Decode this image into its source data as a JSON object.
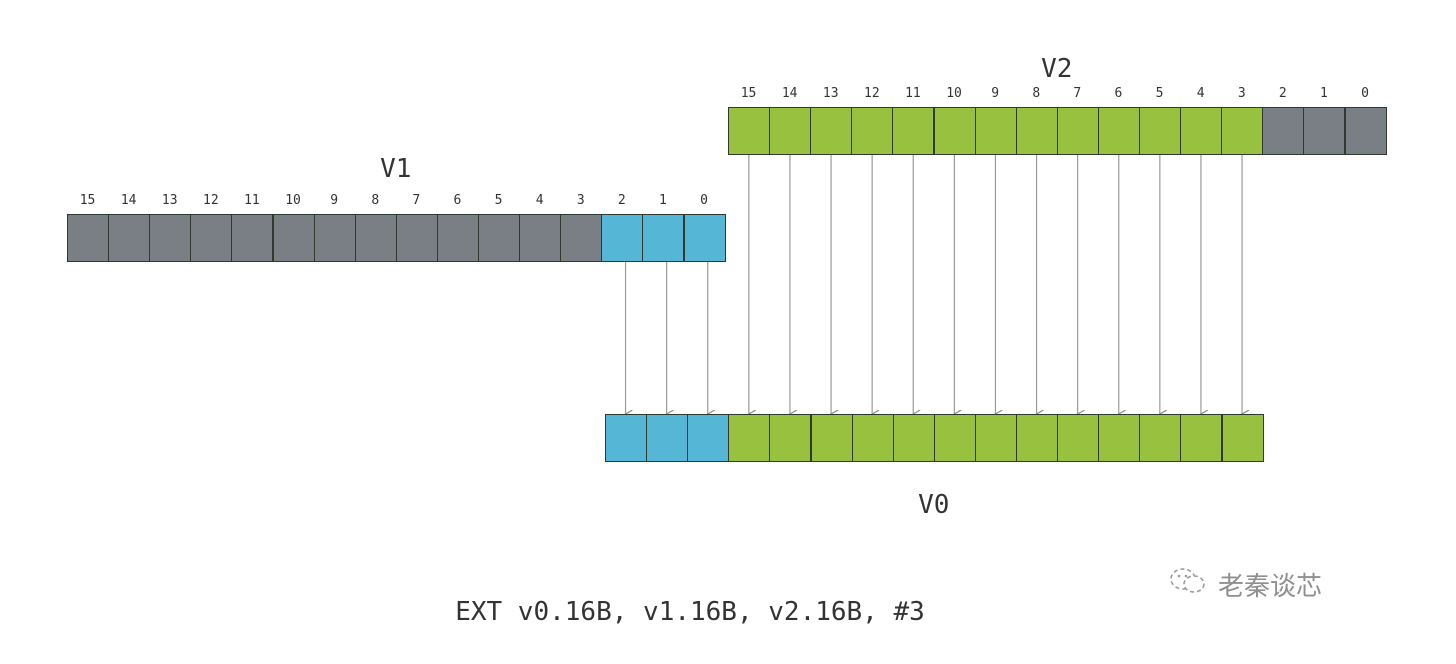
{
  "registers": {
    "v1": {
      "label": "V1",
      "indices": [
        "15",
        "14",
        "13",
        "12",
        "11",
        "10",
        "9",
        "8",
        "7",
        "6",
        "5",
        "4",
        "3",
        "2",
        "1",
        "0"
      ]
    },
    "v2": {
      "label": "V2",
      "indices": [
        "15",
        "14",
        "13",
        "12",
        "11",
        "10",
        "9",
        "8",
        "7",
        "6",
        "5",
        "4",
        "3",
        "2",
        "1",
        "0"
      ]
    },
    "v0": {
      "label": "V0"
    }
  },
  "instruction": "EXT v0.16B, v1.16B, v2.16B, #3",
  "extract_index": 3,
  "lane_count": 16,
  "colors": {
    "unused": "#7a7f85",
    "from_v1": "#55b6d6",
    "from_v2": "#97c13f",
    "border": "#2e3a2e",
    "arrow": "#9a9a9a"
  },
  "watermark": {
    "icon": "wechat-icon",
    "text": "老秦谈芯"
  }
}
